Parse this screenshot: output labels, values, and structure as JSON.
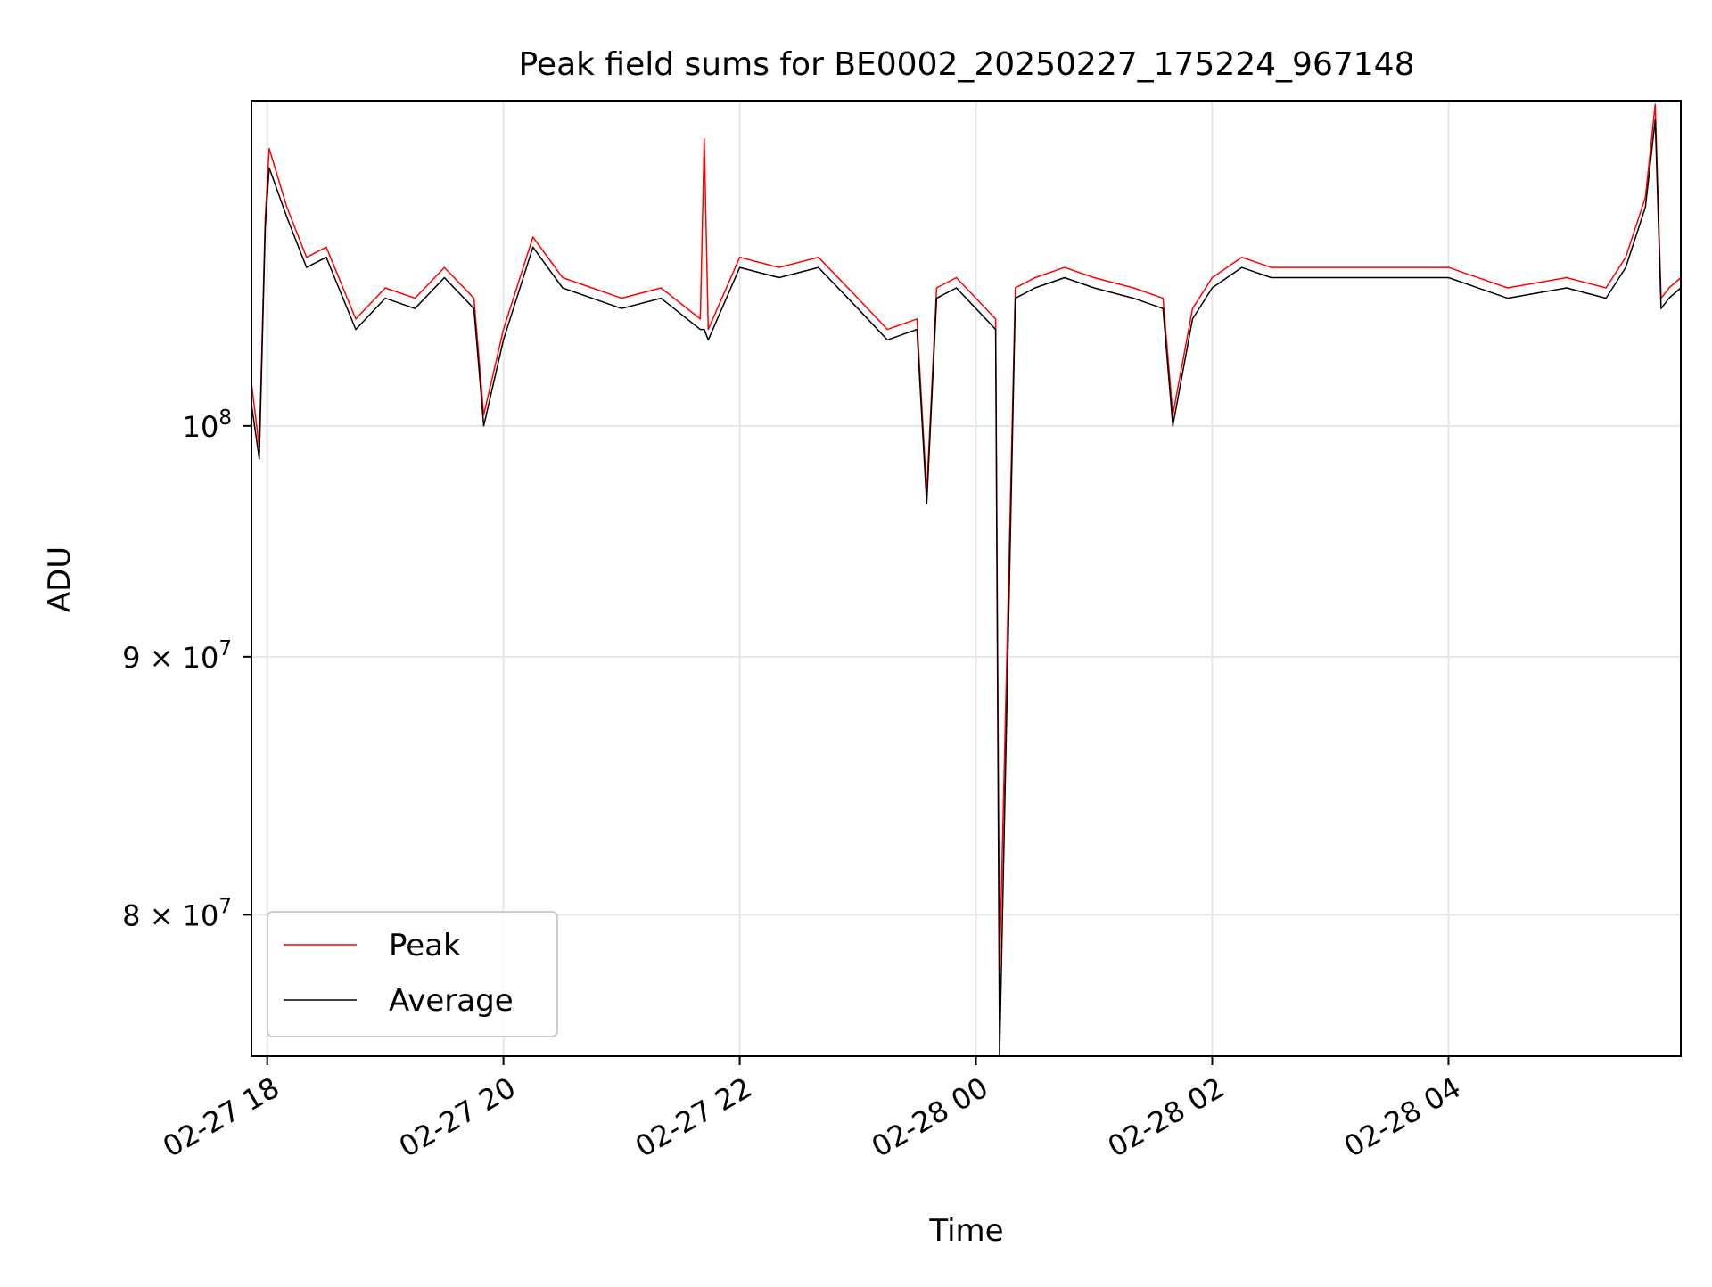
{
  "colors": {
    "peak": "#ff0000",
    "average": "#000000",
    "grid": "#e6e6e6"
  },
  "chart_data": {
    "type": "line",
    "title": "Peak field sums for BE0002_20250227_175224_967148",
    "xlabel": "Time",
    "ylabel": "ADU",
    "y_scale": "log",
    "grid": true,
    "legend_position": "lower-left",
    "xlim": [
      "2025-02-27 17:52",
      "2025-02-28 05:58"
    ],
    "ylim": [
      75000000,
      116000000
    ],
    "x_ticks": [
      {
        "value": "2025-02-27 18:00",
        "label": "02-27 18"
      },
      {
        "value": "2025-02-27 20:00",
        "label": "02-27 20"
      },
      {
        "value": "2025-02-27 22:00",
        "label": "02-27 22"
      },
      {
        "value": "2025-02-28 00:00",
        "label": "02-28 00"
      },
      {
        "value": "2025-02-28 02:00",
        "label": "02-28 02"
      },
      {
        "value": "2025-02-28 04:00",
        "label": "02-28 04"
      }
    ],
    "y_ticks": [
      {
        "value": 100000000,
        "mantissa": "",
        "base": "10",
        "exp": "8"
      },
      {
        "value": 90000000,
        "mantissa": "9 × ",
        "base": "10",
        "exp": "7"
      },
      {
        "value": 80000000,
        "mantissa": "8 × ",
        "base": "10",
        "exp": "7"
      }
    ],
    "series": [
      {
        "name": "Peak",
        "color": "#ff0000",
        "x": [
          "2025-02-27 17:52",
          "2025-02-27 17:56",
          "2025-02-27 17:59",
          "2025-02-27 18:01",
          "2025-02-27 18:10",
          "2025-02-27 18:20",
          "2025-02-27 18:30",
          "2025-02-27 18:45",
          "2025-02-27 19:00",
          "2025-02-27 19:15",
          "2025-02-27 19:30",
          "2025-02-27 19:45",
          "2025-02-27 19:50",
          "2025-02-27 20:00",
          "2025-02-27 20:15",
          "2025-02-27 20:30",
          "2025-02-27 20:45",
          "2025-02-27 21:00",
          "2025-02-27 21:20",
          "2025-02-27 21:40",
          "2025-02-27 21:42",
          "2025-02-27 21:44",
          "2025-02-27 22:00",
          "2025-02-27 22:20",
          "2025-02-27 22:40",
          "2025-02-27 23:00",
          "2025-02-27 23:15",
          "2025-02-27 23:30",
          "2025-02-27 23:35",
          "2025-02-27 23:40",
          "2025-02-27 23:50",
          "2025-02-28 00:00",
          "2025-02-28 00:10",
          "2025-02-28 00:12",
          "2025-02-28 00:20",
          "2025-02-28 00:30",
          "2025-02-28 00:45",
          "2025-02-28 01:00",
          "2025-02-28 01:20",
          "2025-02-28 01:35",
          "2025-02-28 01:40",
          "2025-02-28 01:50",
          "2025-02-28 02:00",
          "2025-02-28 02:15",
          "2025-02-28 02:30",
          "2025-02-28 03:00",
          "2025-02-28 03:30",
          "2025-02-28 04:00",
          "2025-02-28 04:30",
          "2025-02-28 05:00",
          "2025-02-28 05:20",
          "2025-02-28 05:30",
          "2025-02-28 05:40",
          "2025-02-28 05:45",
          "2025-02-28 05:48",
          "2025-02-28 05:52",
          "2025-02-28 05:58"
        ],
        "y": [
          102000000,
          99000000,
          110000000,
          113500000,
          110500000,
          108000000,
          108500000,
          105000000,
          106500000,
          106000000,
          107500000,
          106000000,
          100500000,
          104500000,
          109000000,
          107000000,
          106500000,
          106000000,
          106500000,
          105000000,
          114000000,
          104500000,
          108000000,
          107500000,
          108000000,
          106000000,
          104500000,
          105000000,
          97000000,
          106500000,
          107000000,
          106000000,
          105000000,
          78000000,
          106500000,
          107000000,
          107500000,
          107000000,
          106500000,
          106000000,
          100500000,
          105500000,
          107000000,
          108000000,
          107500000,
          107500000,
          107500000,
          107500000,
          106500000,
          107000000,
          106500000,
          108000000,
          111000000,
          115800000,
          106000000,
          106500000,
          107000000
        ]
      },
      {
        "name": "Average",
        "color": "#000000",
        "x": [
          "2025-02-27 17:52",
          "2025-02-27 17:56",
          "2025-02-27 17:59",
          "2025-02-27 18:01",
          "2025-02-27 18:10",
          "2025-02-27 18:20",
          "2025-02-27 18:30",
          "2025-02-27 18:45",
          "2025-02-27 19:00",
          "2025-02-27 19:15",
          "2025-02-27 19:30",
          "2025-02-27 19:45",
          "2025-02-27 19:50",
          "2025-02-27 20:00",
          "2025-02-27 20:15",
          "2025-02-27 20:30",
          "2025-02-27 20:45",
          "2025-02-27 21:00",
          "2025-02-27 21:20",
          "2025-02-27 21:40",
          "2025-02-27 21:42",
          "2025-02-27 21:44",
          "2025-02-27 22:00",
          "2025-02-27 22:20",
          "2025-02-27 22:40",
          "2025-02-27 23:00",
          "2025-02-27 23:15",
          "2025-02-27 23:30",
          "2025-02-27 23:35",
          "2025-02-27 23:40",
          "2025-02-27 23:50",
          "2025-02-28 00:00",
          "2025-02-28 00:10",
          "2025-02-28 00:12",
          "2025-02-28 00:20",
          "2025-02-28 00:30",
          "2025-02-28 00:45",
          "2025-02-28 01:00",
          "2025-02-28 01:20",
          "2025-02-28 01:35",
          "2025-02-28 01:40",
          "2025-02-28 01:50",
          "2025-02-28 02:00",
          "2025-02-28 02:15",
          "2025-02-28 02:30",
          "2025-02-28 03:00",
          "2025-02-28 03:30",
          "2025-02-28 04:00",
          "2025-02-28 04:30",
          "2025-02-28 05:00",
          "2025-02-28 05:20",
          "2025-02-28 05:30",
          "2025-02-28 05:40",
          "2025-02-28 05:45",
          "2025-02-28 05:48",
          "2025-02-28 05:52",
          "2025-02-28 05:58"
        ],
        "y": [
          101000000,
          98500000,
          109500000,
          112500000,
          110000000,
          107500000,
          108000000,
          104500000,
          106000000,
          105500000,
          107000000,
          105500000,
          100000000,
          104000000,
          108500000,
          106500000,
          106000000,
          105500000,
          106000000,
          104500000,
          104500000,
          104000000,
          107500000,
          107000000,
          107500000,
          105500000,
          104000000,
          104500000,
          96500000,
          106000000,
          106500000,
          105500000,
          104500000,
          75000000,
          106000000,
          106500000,
          107000000,
          106500000,
          106000000,
          105500000,
          100000000,
          105000000,
          106500000,
          107500000,
          107000000,
          107000000,
          107000000,
          107000000,
          106000000,
          106500000,
          106000000,
          107500000,
          110500000,
          115000000,
          105500000,
          106000000,
          106500000
        ]
      }
    ]
  }
}
